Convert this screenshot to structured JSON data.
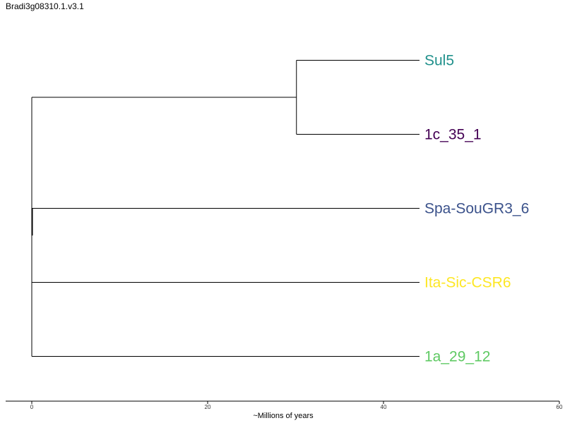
{
  "title": "Bradi3g08310.1.v3.1",
  "tree": {
    "tips": [
      {
        "name": "Sul5",
        "color": "#21918c"
      },
      {
        "name": "1c_35_1",
        "color": "#440154"
      },
      {
        "name": "Spa-SouGR3_6",
        "color": "#3b528b"
      },
      {
        "name": "Ita-Sic-CSR6",
        "color": "#fde725"
      },
      {
        "name": "1a_29_12",
        "color": "#5ec962"
      }
    ]
  },
  "axis": {
    "title": "~Millions of years",
    "ticks": [
      0,
      20,
      40,
      60
    ],
    "range": [
      -3,
      60
    ]
  }
}
